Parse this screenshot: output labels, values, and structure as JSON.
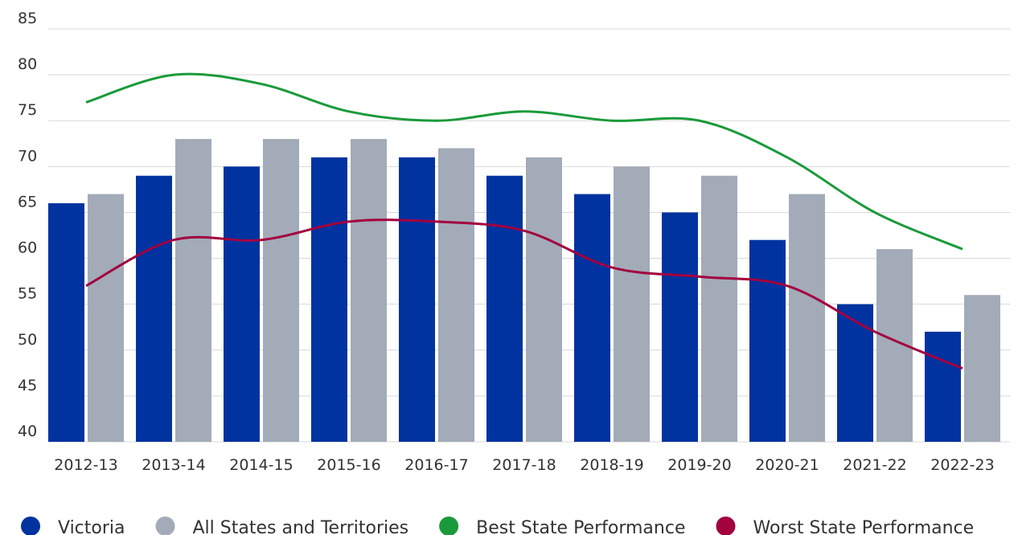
{
  "chart_data": {
    "type": "bar-line",
    "categories": [
      "2012-13",
      "2013-14",
      "2014-15",
      "2015-16",
      "2016-17",
      "2017-18",
      "2018-19",
      "2019-20",
      "2020-21",
      "2021-22",
      "2022-23"
    ],
    "series": [
      {
        "name": "Victoria",
        "type": "bar",
        "color": "#0033a0",
        "values": [
          66,
          69,
          70,
          71,
          71,
          69,
          67,
          65,
          62,
          55,
          52
        ]
      },
      {
        "name": "All States and Territories",
        "type": "bar",
        "color": "#a3abb8",
        "values": [
          67,
          73,
          73,
          73,
          72,
          71,
          70,
          69,
          67,
          61,
          56
        ]
      },
      {
        "name": "Best State Performance",
        "type": "line",
        "color": "#1a9a3a",
        "values": [
          77,
          80,
          79,
          76,
          75,
          76,
          75,
          75,
          71,
          65,
          61
        ]
      },
      {
        "name": "Worst State Performance",
        "type": "line",
        "color": "#a3003f",
        "values": [
          57,
          62,
          62,
          64,
          64,
          63,
          59,
          58,
          57,
          52,
          48
        ]
      }
    ],
    "ylim": [
      40,
      85
    ],
    "yticks": [
      40,
      45,
      50,
      55,
      60,
      65,
      70,
      75,
      80,
      85
    ],
    "grid": true,
    "legend": "bottom"
  }
}
